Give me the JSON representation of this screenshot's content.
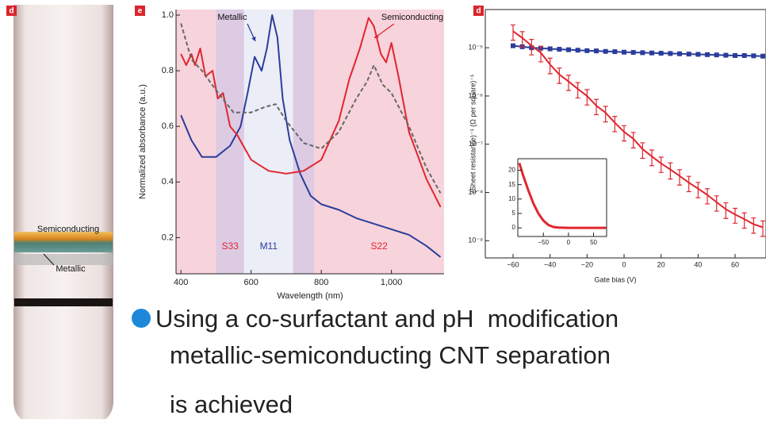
{
  "tube": {
    "panel_label": "d",
    "labels": [
      "Semiconducting",
      "Metallic"
    ]
  },
  "bullet": {
    "lines": [
      "Using a co-surfactant and pH  modification",
      "metallic-semiconducting CNT separation",
      "is achieved"
    ]
  },
  "chart_data": [
    {
      "type": "line",
      "panel_label": "e",
      "xlabel": "Wavelength (nm)",
      "ylabel": "Normalized absorbance (a.u.)",
      "xlim": [
        386,
        1150
      ],
      "ylim": [
        0.07,
        1.02
      ],
      "xticks": [
        400,
        600,
        800,
        {
          "value": 1000,
          "label": "1,000"
        }
      ],
      "yticks": [
        0.2,
        0.4,
        0.6,
        0.8,
        {
          "value": 1,
          "label": "1.0"
        }
      ],
      "grid": false,
      "background": "#f7d3db",
      "regions": [
        {
          "label": "S33",
          "range": [
            500,
            580
          ],
          "color": "#dccbe3",
          "label_color": "#e0262f"
        },
        {
          "label": "M11",
          "range": [
            580,
            720
          ],
          "color": "#ebedf7",
          "label_color": "#2b3d9b"
        },
        {
          "label": null,
          "range": [
            720,
            780
          ],
          "color": "#dccbe3"
        },
        {
          "label": "S22",
          "range": [
            780,
            1150
          ],
          "color": "#f7d3db",
          "label_color": "#e0262f"
        }
      ],
      "series": [
        {
          "name": "Metallic",
          "color": "#2b3d9b",
          "x": [
            400,
            430,
            460,
            500,
            540,
            570,
            590,
            610,
            630,
            645,
            660,
            675,
            690,
            710,
            740,
            770,
            800,
            850,
            900,
            950,
            1000,
            1050,
            1100,
            1140
          ],
          "values": [
            0.64,
            0.55,
            0.49,
            0.49,
            0.53,
            0.6,
            0.72,
            0.85,
            0.8,
            0.88,
            1.0,
            0.92,
            0.7,
            0.55,
            0.43,
            0.35,
            0.32,
            0.3,
            0.27,
            0.25,
            0.23,
            0.21,
            0.17,
            0.13
          ]
        },
        {
          "name": "Semiconducting",
          "color": "#e0262f",
          "x": [
            400,
            415,
            430,
            440,
            455,
            470,
            490,
            505,
            520,
            540,
            560,
            600,
            650,
            700,
            750,
            800,
            850,
            880,
            910,
            935,
            950,
            970,
            985,
            1000,
            1020,
            1050,
            1100,
            1140
          ],
          "values": [
            0.86,
            0.82,
            0.86,
            0.82,
            0.88,
            0.78,
            0.8,
            0.7,
            0.72,
            0.6,
            0.57,
            0.48,
            0.44,
            0.43,
            0.44,
            0.48,
            0.62,
            0.77,
            0.88,
            0.99,
            0.96,
            0.86,
            0.83,
            0.9,
            0.78,
            0.58,
            0.41,
            0.31
          ]
        },
        {
          "color": "#666666",
          "dashed": true,
          "x": [
            400,
            430,
            460,
            500,
            550,
            600,
            640,
            670,
            700,
            750,
            800,
            850,
            900,
            930,
            950,
            975,
            1000,
            1050,
            1100,
            1140
          ],
          "values": [
            0.97,
            0.84,
            0.8,
            0.73,
            0.65,
            0.65,
            0.67,
            0.68,
            0.62,
            0.54,
            0.52,
            0.58,
            0.7,
            0.76,
            0.82,
            0.75,
            0.72,
            0.6,
            0.45,
            0.36
          ]
        }
      ]
    },
    {
      "type": "line",
      "panel_label": "d",
      "xlabel": "Gate bias (V)",
      "ylabel": "(Sheet resistance)⁻¹ (Ω per square)⁻¹",
      "ylog": true,
      "xlim": [
        -75,
        76.7
      ],
      "ylim": [
        4.4e-10,
        6.2e-05
      ],
      "xticks": [
        {
          "value": -60,
          "label": "−60"
        },
        {
          "value": -40,
          "label": "−40"
        },
        {
          "value": -20,
          "label": "−20"
        },
        0,
        20,
        40,
        60
      ],
      "yticks": [
        {
          "value": 1e-05,
          "label": "10⁻⁵"
        },
        {
          "value": 1e-06,
          "label": "10⁻⁶"
        },
        {
          "value": 1e-07,
          "label": "10⁻⁷"
        },
        {
          "value": 1e-08,
          "label": "10⁻⁸"
        },
        {
          "value": 1e-09,
          "label": "10⁻⁹"
        }
      ],
      "grid": false,
      "x": [
        -60,
        -55,
        -50,
        -45,
        -40,
        -35,
        -30,
        -25,
        -20,
        -15,
        -10,
        -5,
        0,
        5,
        10,
        15,
        20,
        25,
        30,
        35,
        40,
        45,
        50,
        55,
        60,
        65,
        70,
        75
      ],
      "series": [
        {
          "color": "#2b3d9b",
          "marker": "square",
          "values": [
            1.1e-05,
            1.05e-05,
            1e-05,
            9.8e-06,
            9.5e-06,
            9.3e-06,
            9.1e-06,
            8.9e-06,
            8.7e-06,
            8.6e-06,
            8.4e-06,
            8.3e-06,
            8.1e-06,
            8e-06,
            7.9e-06,
            7.8e-06,
            7.7e-06,
            7.6e-06,
            7.5e-06,
            7.4e-06,
            7.3e-06,
            7.2e-06,
            7.1e-06,
            7e-06,
            6.9e-06,
            6.9e-06,
            6.8e-06,
            6.7e-06
          ]
        },
        {
          "color": "#e0262f",
          "values": [
            2.2e-05,
            1.6e-05,
            1.1e-05,
            7.9e-06,
            4.5e-06,
            2.8e-06,
            2e-06,
            1.4e-06,
            1e-06,
            6.3e-07,
            4.5e-07,
            2.8e-07,
            1.8e-07,
            1.3e-07,
            7.9e-08,
            5.6e-08,
            4e-08,
            3e-08,
            2.2e-08,
            1.6e-08,
            1.2e-08,
            8.9e-09,
            6.3e-09,
            4.5e-09,
            3.5e-09,
            2.8e-09,
            2.2e-09,
            1.9e-09
          ],
          "errors": [
            7.7e-06,
            5.6e-06,
            3.9e-06,
            2.8e-06,
            1.6e-06,
            9.8e-07,
            7e-07,
            4.9e-07,
            3.5e-07,
            2.2e-07,
            1.6e-07,
            9.8e-08,
            6.3e-08,
            4.6e-08,
            2.8e-08,
            2e-08,
            1.4e-08,
            1.1e-08,
            7.7e-09,
            5.6e-09,
            4.2e-09,
            3.1e-09,
            2.2e-09,
            1.6e-09,
            1.2e-09,
            9.8e-10,
            7.7e-10,
            6.7e-10
          ]
        }
      ]
    },
    {
      "type": "line",
      "xlim": [
        -101,
        76
      ],
      "ylim": [
        -3,
        24
      ],
      "xticks": [
        {
          "value": -50,
          "label": "−50"
        },
        0,
        50
      ],
      "yticks": [
        0,
        5,
        10,
        15,
        20
      ],
      "grid": false,
      "series": [
        {
          "color": "#e0262f",
          "width": 3,
          "x": [
            -98,
            -90,
            -80,
            -70,
            -60,
            -50,
            -40,
            -30,
            -20,
            0,
            20,
            40,
            60,
            75
          ],
          "values": [
            22.5,
            18,
            13,
            8.5,
            5,
            2.5,
            1,
            0.3,
            0.1,
            0,
            0,
            0,
            0,
            0
          ]
        }
      ]
    }
  ]
}
